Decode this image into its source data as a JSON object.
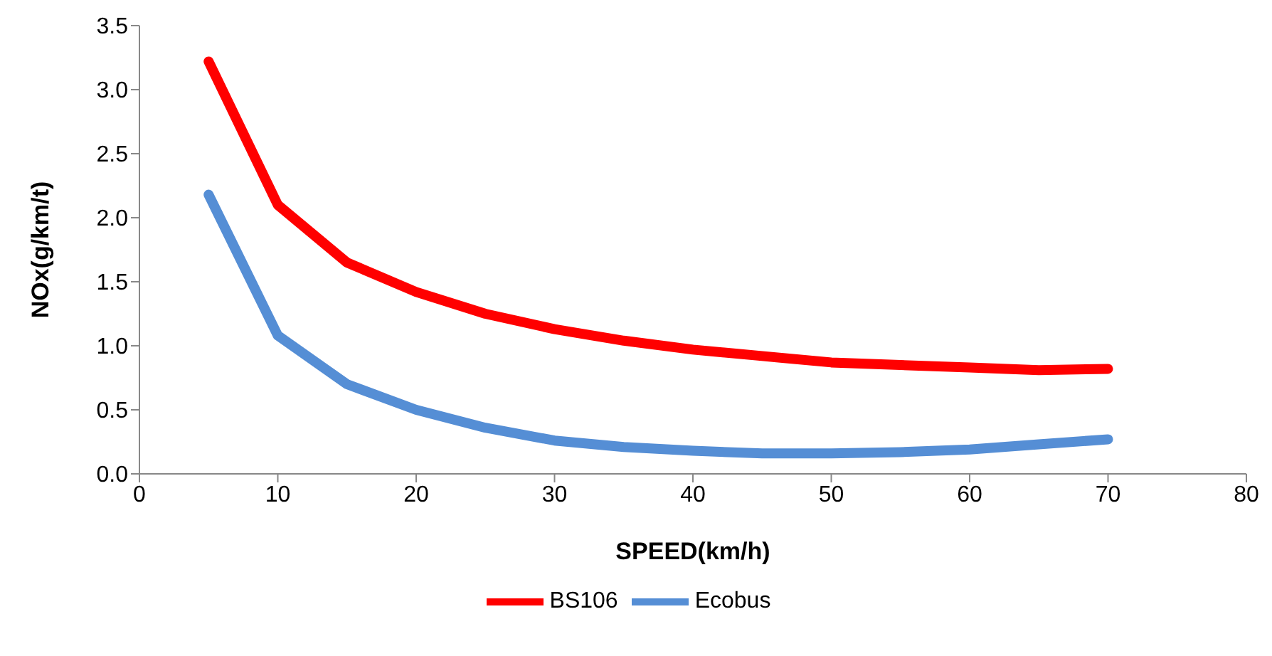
{
  "chart_data": {
    "type": "line",
    "xlabel": "SPEED(km/h)",
    "ylabel": "NOx(g/km/t)",
    "x": [
      5,
      10,
      15,
      20,
      25,
      30,
      35,
      40,
      45,
      50,
      55,
      60,
      65,
      70
    ],
    "series": [
      {
        "name": "BS106",
        "color": "#ff0000",
        "values": [
          3.22,
          2.1,
          1.65,
          1.42,
          1.25,
          1.13,
          1.04,
          0.97,
          0.92,
          0.87,
          0.85,
          0.83,
          0.81,
          0.82
        ]
      },
      {
        "name": "Ecobus",
        "color": "#558ed5",
        "values": [
          2.18,
          1.08,
          0.7,
          0.5,
          0.36,
          0.26,
          0.21,
          0.18,
          0.16,
          0.16,
          0.17,
          0.19,
          0.23,
          0.27
        ]
      }
    ],
    "xlim": [
      0,
      80
    ],
    "xticks": [
      0,
      10,
      20,
      30,
      40,
      50,
      60,
      70,
      80
    ],
    "ylim": [
      0,
      3.5
    ],
    "yticks": [
      {
        "value": 0,
        "label": "0.0"
      },
      {
        "value": 0.5,
        "label": "0.5"
      },
      {
        "value": 1,
        "label": "1.0"
      },
      {
        "value": 1.5,
        "label": "1.5"
      },
      {
        "value": 2,
        "label": "2.0"
      },
      {
        "value": 2.5,
        "label": "2.5"
      },
      {
        "value": 3,
        "label": "3.0"
      },
      {
        "value": 3.5,
        "label": "3.5"
      }
    ],
    "grid": false,
    "legend": "bottom",
    "marker": "none",
    "line_style": "solid"
  }
}
